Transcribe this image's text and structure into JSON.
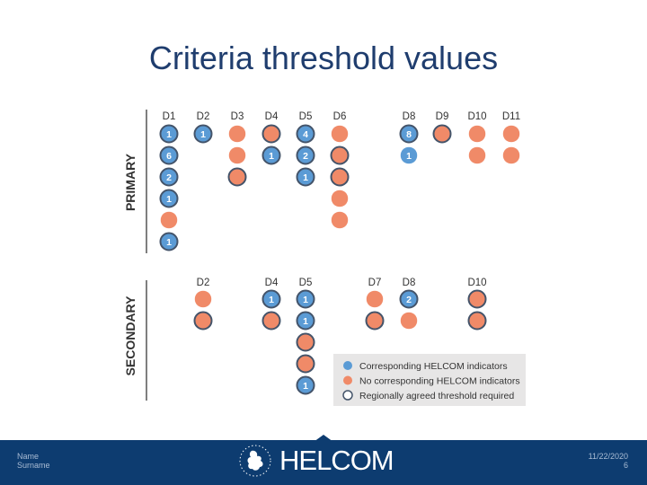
{
  "title": "Criteria threshold values",
  "colors": {
    "blue": "#5b9bd5",
    "orange": "#f08a68",
    "outline": "#44546a",
    "axis": "#555555",
    "label": "#333333",
    "legend_bg": "#e7e6e6",
    "footer": "#0d3c70"
  },
  "primary": {
    "label": "PRIMARY",
    "columns": [
      {
        "label": "D1",
        "circles": [
          {
            "fill": "blue",
            "outline": true,
            "text": "1"
          },
          {
            "fill": "blue",
            "outline": true,
            "text": "6"
          },
          {
            "fill": "blue",
            "outline": true,
            "text": "2"
          },
          {
            "fill": "blue",
            "outline": true,
            "text": "1"
          },
          {
            "fill": "orange",
            "outline": false,
            "text": ""
          },
          {
            "fill": "blue",
            "outline": true,
            "text": "1"
          }
        ]
      },
      {
        "label": "D2",
        "circles": [
          {
            "fill": "blue",
            "outline": true,
            "text": "1"
          }
        ]
      },
      {
        "label": "D3",
        "circles": [
          {
            "fill": "orange",
            "outline": false,
            "text": ""
          },
          {
            "fill": "orange",
            "outline": false,
            "text": ""
          },
          {
            "fill": "orange",
            "outline": true,
            "text": ""
          }
        ]
      },
      {
        "label": "D4",
        "circles": [
          {
            "fill": "orange",
            "outline": true,
            "text": ""
          },
          {
            "fill": "blue",
            "outline": true,
            "text": "1"
          }
        ]
      },
      {
        "label": "D5",
        "circles": [
          {
            "fill": "blue",
            "outline": true,
            "text": "4"
          },
          {
            "fill": "blue",
            "outline": true,
            "text": "2"
          },
          {
            "fill": "blue",
            "outline": true,
            "text": "1"
          }
        ]
      },
      {
        "label": "D6",
        "circles": [
          {
            "fill": "orange",
            "outline": false,
            "text": ""
          },
          {
            "fill": "orange",
            "outline": true,
            "text": ""
          },
          {
            "fill": "orange",
            "outline": true,
            "text": ""
          },
          {
            "fill": "orange",
            "outline": false,
            "text": ""
          },
          {
            "fill": "orange",
            "outline": false,
            "text": ""
          }
        ]
      },
      {
        "label": "D8",
        "circles": [
          {
            "fill": "blue",
            "outline": true,
            "text": "8"
          },
          {
            "fill": "blue",
            "outline": false,
            "text": "1"
          }
        ]
      },
      {
        "label": "D9",
        "circles": [
          {
            "fill": "orange",
            "outline": true,
            "text": ""
          }
        ]
      },
      {
        "label": "D10",
        "circles": [
          {
            "fill": "orange",
            "outline": false,
            "text": ""
          },
          {
            "fill": "orange",
            "outline": false,
            "text": ""
          }
        ]
      },
      {
        "label": "D11",
        "circles": [
          {
            "fill": "orange",
            "outline": false,
            "text": ""
          },
          {
            "fill": "orange",
            "outline": false,
            "text": ""
          }
        ]
      }
    ]
  },
  "secondary": {
    "label": "SECONDARY",
    "columns": [
      {
        "label": "D2",
        "circles": [
          {
            "fill": "orange",
            "outline": false,
            "text": ""
          },
          {
            "fill": "orange",
            "outline": true,
            "text": ""
          }
        ]
      },
      {
        "label": "D4",
        "circles": [
          {
            "fill": "blue",
            "outline": true,
            "text": "1"
          },
          {
            "fill": "orange",
            "outline": true,
            "text": ""
          }
        ]
      },
      {
        "label": "D5",
        "circles": [
          {
            "fill": "blue",
            "outline": true,
            "text": "1"
          },
          {
            "fill": "blue",
            "outline": true,
            "text": "1"
          },
          {
            "fill": "orange",
            "outline": true,
            "text": ""
          },
          {
            "fill": "orange",
            "outline": true,
            "text": ""
          },
          {
            "fill": "blue",
            "outline": true,
            "text": "1"
          }
        ]
      },
      {
        "label": "D7",
        "circles": [
          {
            "fill": "orange",
            "outline": false,
            "text": ""
          },
          {
            "fill": "orange",
            "outline": true,
            "text": ""
          }
        ]
      },
      {
        "label": "D8",
        "circles": [
          {
            "fill": "blue",
            "outline": true,
            "text": "2"
          },
          {
            "fill": "orange",
            "outline": false,
            "text": ""
          }
        ]
      },
      {
        "label": "D10",
        "circles": [
          {
            "fill": "orange",
            "outline": true,
            "text": ""
          },
          {
            "fill": "orange",
            "outline": true,
            "text": ""
          }
        ]
      }
    ]
  },
  "legend": [
    {
      "marker": "blue",
      "text": "Corresponding HELCOM indicators"
    },
    {
      "marker": "orange",
      "text": "No corresponding HELCOM indicators"
    },
    {
      "marker": "outline",
      "text": "Regionally agreed threshold required"
    }
  ],
  "footer": {
    "name_line1": "Name",
    "name_line2": "Surname",
    "brand": "HELCOM",
    "date": "11/22/2020",
    "page": "6"
  }
}
